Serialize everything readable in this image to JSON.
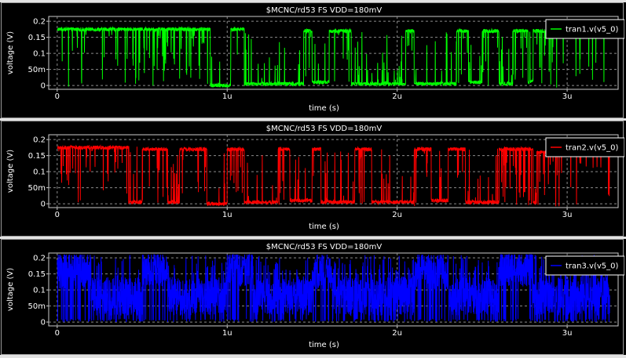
{
  "chart_data": [
    {
      "type": "line",
      "title": "$MCNC/rd53 FS VDD=180mV",
      "xlabel": "time (s)",
      "ylabel": "voltage (V)",
      "xlim": [
        -0.05,
        3.3
      ],
      "ylim": [
        -0.012,
        0.215
      ],
      "x_unit": "microseconds",
      "x_ticks": [
        0,
        1,
        2,
        3
      ],
      "x_tick_labels": [
        "0",
        "1u",
        "2u",
        "3u"
      ],
      "y_ticks": [
        0,
        0.05,
        0.1,
        0.15,
        0.2
      ],
      "y_tick_labels": [
        "0",
        "50m",
        "0.1",
        "0.15",
        "0.2"
      ],
      "grid": true,
      "legend_position": "top-right",
      "series": [
        {
          "name": "tran1.v(v5_0)",
          "color": "#00ff00",
          "levels": [
            [
              0.0,
              0.175
            ],
            [
              0.9,
              0.175
            ],
            [
              0.9,
              0.0
            ],
            [
              1.02,
              0.0
            ],
            [
              1.02,
              0.175
            ],
            [
              1.1,
              0.175
            ],
            [
              1.1,
              0.005
            ],
            [
              1.45,
              0.005
            ],
            [
              1.45,
              0.17
            ],
            [
              1.5,
              0.17
            ],
            [
              1.5,
              0.01
            ],
            [
              1.6,
              0.01
            ],
            [
              1.6,
              0.17
            ],
            [
              1.73,
              0.17
            ],
            [
              1.73,
              0.005
            ],
            [
              2.05,
              0.005
            ],
            [
              2.05,
              0.17
            ],
            [
              2.1,
              0.17
            ],
            [
              2.1,
              0.005
            ],
            [
              2.35,
              0.005
            ],
            [
              2.35,
              0.17
            ],
            [
              2.42,
              0.17
            ],
            [
              2.42,
              0.01
            ],
            [
              2.5,
              0.01
            ],
            [
              2.5,
              0.17
            ],
            [
              2.6,
              0.17
            ],
            [
              2.6,
              0.005
            ],
            [
              2.68,
              0.005
            ],
            [
              2.68,
              0.17
            ],
            [
              2.77,
              0.17
            ],
            [
              2.77,
              0.01
            ],
            [
              2.8,
              0.01
            ],
            [
              2.8,
              0.17
            ],
            [
              3.25,
              0.17
            ]
          ]
        },
        {
          "name": "tran2.v(v5_0)",
          "color": "#ff0000",
          "levels": [
            [
              0.0,
              0.175
            ],
            [
              0.42,
              0.175
            ],
            [
              0.42,
              0.005
            ],
            [
              0.5,
              0.005
            ],
            [
              0.5,
              0.17
            ],
            [
              0.65,
              0.17
            ],
            [
              0.65,
              0.005
            ],
            [
              0.72,
              0.005
            ],
            [
              0.72,
              0.17
            ],
            [
              0.88,
              0.17
            ],
            [
              0.88,
              0.0
            ],
            [
              1.0,
              0.0
            ],
            [
              1.0,
              0.17
            ],
            [
              1.1,
              0.17
            ],
            [
              1.1,
              0.005
            ],
            [
              1.3,
              0.005
            ],
            [
              1.3,
              0.17
            ],
            [
              1.37,
              0.17
            ],
            [
              1.37,
              0.01
            ],
            [
              1.5,
              0.01
            ],
            [
              1.5,
              0.17
            ],
            [
              1.55,
              0.17
            ],
            [
              1.55,
              0.005
            ],
            [
              1.75,
              0.005
            ],
            [
              1.75,
              0.17
            ],
            [
              1.85,
              0.17
            ],
            [
              1.85,
              0.005
            ],
            [
              2.1,
              0.005
            ],
            [
              2.1,
              0.17
            ],
            [
              2.2,
              0.17
            ],
            [
              2.2,
              0.01
            ],
            [
              2.3,
              0.01
            ],
            [
              2.3,
              0.17
            ],
            [
              2.4,
              0.17
            ],
            [
              2.4,
              0.005
            ],
            [
              2.6,
              0.005
            ],
            [
              2.6,
              0.17
            ],
            [
              2.8,
              0.17
            ],
            [
              2.8,
              0.005
            ],
            [
              2.82,
              0.005
            ],
            [
              2.82,
              0.16
            ],
            [
              3.25,
              0.16
            ]
          ]
        },
        {
          "name": "tran3.v(v5_0)",
          "color": "#0000ff",
          "levels": [
            [
              0.0,
              0.16
            ],
            [
              0.2,
              0.16
            ],
            [
              0.2,
              0.08
            ],
            [
              0.5,
              0.08
            ],
            [
              0.5,
              0.17
            ],
            [
              0.65,
              0.17
            ],
            [
              0.65,
              0.08
            ],
            [
              1.0,
              0.08
            ],
            [
              1.0,
              0.17
            ],
            [
              1.15,
              0.17
            ],
            [
              1.15,
              0.08
            ],
            [
              1.5,
              0.08
            ],
            [
              1.5,
              0.16
            ],
            [
              1.62,
              0.16
            ],
            [
              1.62,
              0.08
            ],
            [
              2.1,
              0.08
            ],
            [
              2.1,
              0.16
            ],
            [
              2.3,
              0.16
            ],
            [
              2.3,
              0.08
            ],
            [
              2.6,
              0.08
            ],
            [
              2.6,
              0.17
            ],
            [
              2.8,
              0.17
            ],
            [
              2.8,
              0.08
            ],
            [
              3.25,
              0.08
            ]
          ]
        }
      ]
    }
  ]
}
